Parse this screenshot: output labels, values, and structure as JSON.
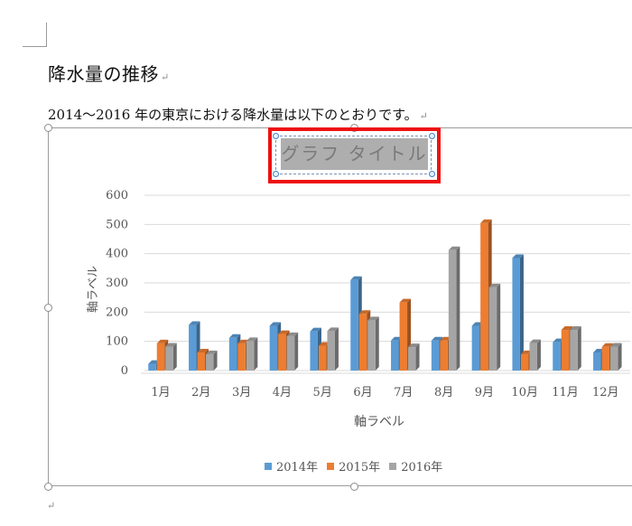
{
  "document": {
    "heading": "降水量の推移",
    "paragraph": "2014～2016 年の東京における降水量は以下のとおりです。",
    "para_mark": "↵",
    "end_mark": "↵"
  },
  "chart_data": {
    "type": "bar",
    "title": "グラフ タイトル",
    "xlabel": "軸ラベル",
    "ylabel": "軸ラベル",
    "categories": [
      "1月",
      "2月",
      "3月",
      "4月",
      "5月",
      "6月",
      "7月",
      "8月",
      "9月",
      "10月",
      "11月",
      "12月"
    ],
    "series": [
      {
        "name": "2014年",
        "color": "#5b9bd5",
        "values": [
          23,
          156,
          112,
          153,
          134,
          310,
          103,
          103,
          153,
          385,
          97,
          62
        ]
      },
      {
        "name": "2015年",
        "color": "#ed7d31",
        "values": [
          93,
          62,
          93,
          125,
          85,
          194,
          233,
          103,
          505,
          56,
          139,
          81
        ]
      },
      {
        "name": "2016年",
        "color": "#a5a5a5",
        "values": [
          82,
          56,
          101,
          118,
          135,
          172,
          80,
          412,
          285,
          94,
          139,
          82
        ]
      }
    ],
    "ylim": [
      0,
      600
    ],
    "yticks": [
      0,
      100,
      200,
      300,
      400,
      500,
      600
    ],
    "grid": true,
    "legend_position": "bottom",
    "style": "3d-clustered-column"
  }
}
